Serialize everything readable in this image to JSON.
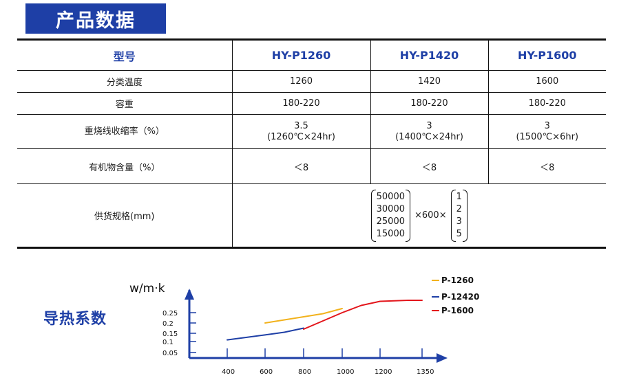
{
  "header": {
    "title": "产品数据"
  },
  "table": {
    "columns": [
      "型号",
      "HY-P1260",
      "HY-P1420",
      "HY-P1600"
    ],
    "rows": [
      {
        "label": "分类温度",
        "values": [
          "1260",
          "1420",
          "1600"
        ]
      },
      {
        "label": "容重",
        "values": [
          "180-220",
          "180-220",
          "180-220"
        ]
      },
      {
        "label": "重烧线收缩率（%）",
        "values": [
          [
            "3.5",
            "(1260℃×24hr)"
          ],
          [
            "3",
            "(1400℃×24hr)"
          ],
          [
            "3",
            "(1500℃×6hr)"
          ]
        ]
      },
      {
        "label": "有机物含量（%）",
        "values": [
          "＜8",
          "＜8",
          "＜8"
        ]
      }
    ],
    "supply": {
      "label": "供货规格(mm)",
      "lengths": [
        "50000",
        "30000",
        "25000",
        "15000"
      ],
      "width": "×600×",
      "thicknesses": [
        "1",
        "2",
        "3",
        "5"
      ]
    }
  },
  "chart_data": {
    "type": "line",
    "title": "导热系数",
    "ylabel": "w/m·k",
    "xlabel": "",
    "x_ticks": [
      "400",
      "600",
      "800",
      "1000",
      "1200",
      "1350"
    ],
    "y_ticks": [
      "0.25",
      "0.2",
      "0.15",
      "0.1",
      "0.05"
    ],
    "series": [
      {
        "name": "P-1260",
        "color": "#f2b21c",
        "x": [
          600,
          700,
          800,
          900,
          1000
        ],
        "y": [
          0.2,
          0.215,
          0.23,
          0.245,
          0.27
        ]
      },
      {
        "name": "P-12420",
        "color": "#1e3fa6",
        "x": [
          400,
          500,
          600,
          700,
          800
        ],
        "y": [
          0.11,
          0.125,
          0.14,
          0.155,
          0.175
        ]
      },
      {
        "name": "P-1600",
        "color": "#e3151b",
        "x": [
          800,
          900,
          1000,
          1100,
          1200,
          1300,
          1350
        ],
        "y": [
          0.17,
          0.21,
          0.25,
          0.285,
          0.305,
          0.31,
          0.31
        ]
      }
    ]
  }
}
